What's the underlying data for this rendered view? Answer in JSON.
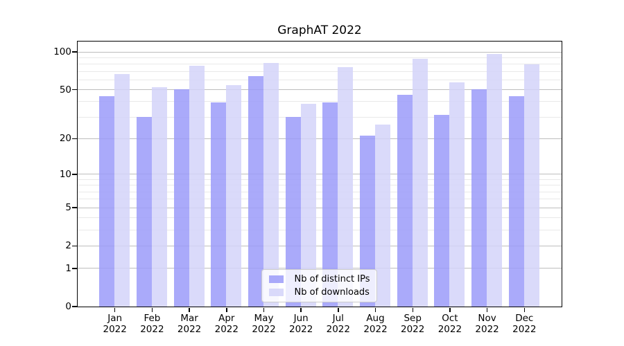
{
  "chart_data": {
    "type": "bar",
    "title": "GraphAT 2022",
    "yscale": "log1p",
    "grid": true,
    "legend_position": "lower center",
    "x": [
      "Jan",
      "Feb",
      "Mar",
      "Apr",
      "May",
      "Jun",
      "Jul",
      "Aug",
      "Sep",
      "Oct",
      "Nov",
      "Dec"
    ],
    "x_year": "2022",
    "series": [
      {
        "name": "Nb of distinct IPs",
        "color": "#9b9bf9",
        "values": [
          44,
          30,
          50,
          39,
          64,
          30,
          39,
          21,
          45,
          31,
          50,
          44
        ]
      },
      {
        "name": "Nb of downloads",
        "color": "#d3d3f9",
        "values": [
          66,
          52,
          77,
          54,
          81,
          38,
          75,
          26,
          88,
          57,
          96,
          79
        ]
      }
    ],
    "y_major_ticks": [
      100,
      50,
      20,
      10,
      5,
      2,
      1,
      0
    ],
    "y_minor_ticks": [
      3,
      4,
      6,
      7,
      8,
      9,
      30,
      40,
      60,
      70,
      80,
      90
    ],
    "y_axis_max": 121
  },
  "colors": {
    "grid_major": "#bdbdbd",
    "grid_minor": "#e9e9e9",
    "axis": "#000000",
    "background": "#ffffff"
  }
}
